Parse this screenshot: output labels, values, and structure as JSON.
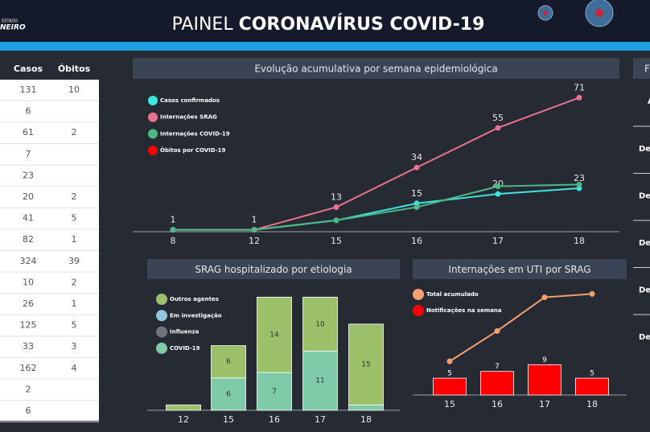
{
  "header": {
    "logo_top": "ESTADO",
    "logo_bottom": "NEIRO",
    "title_light": "PAINEL",
    "title_bold": "CORONAVÍRUS COVID-19"
  },
  "table": {
    "columns": [
      "Casos",
      "Óbitos"
    ],
    "rows": [
      [
        131,
        10
      ],
      [
        6
      ],
      [
        61,
        2
      ],
      [
        7
      ],
      [
        23
      ],
      [
        20,
        2
      ],
      [
        41,
        5
      ],
      [
        82,
        1
      ],
      [
        324,
        39
      ],
      [
        10,
        2
      ],
      [
        26,
        1
      ],
      [
        125,
        5
      ],
      [
        33,
        3
      ],
      [
        162,
        4
      ],
      [
        2
      ],
      [
        6
      ]
    ]
  },
  "side_panel": {
    "title": "F",
    "header": "A",
    "rows": [
      "De",
      "De",
      "De",
      "De",
      "De"
    ]
  },
  "chart_data": [
    {
      "type": "line",
      "title": "Evolução acumulativa por semana epidemiológica",
      "categories": [
        8,
        12,
        15,
        16,
        17,
        18
      ],
      "ylim": [
        0,
        75
      ],
      "series": [
        {
          "name": "Casos confirmados",
          "color": "#3fe3e0",
          "values": [
            1,
            1,
            6,
            15,
            20,
            23
          ],
          "value_labels": [
            null,
            null,
            null,
            "15",
            "20",
            "23"
          ]
        },
        {
          "name": "Internações SRAG",
          "color": "#e8728f",
          "values": [
            1,
            1,
            13,
            34,
            55,
            71
          ],
          "value_labels": [
            "1",
            "1",
            "13",
            "34",
            "55",
            "71"
          ]
        },
        {
          "name": "Internações COVID-19",
          "color": "#4fb884",
          "values": [
            1,
            1,
            6,
            13,
            24,
            25
          ]
        },
        {
          "name": "Óbitos por COVID-19",
          "color": "#ff0000",
          "values": [
            null,
            null,
            null,
            null,
            null,
            null
          ]
        }
      ]
    },
    {
      "type": "stacked_bar",
      "title": "SRAG hospitalizado por etiologia",
      "categories": [
        12,
        15,
        16,
        17,
        18
      ],
      "ylim": [
        0,
        21.5
      ],
      "series": [
        {
          "name": "Outros agentes",
          "color": "#9cc06a",
          "values": [
            1,
            6,
            14,
            10,
            15
          ],
          "value_labels": [
            null,
            "6",
            "14",
            "10",
            "15"
          ]
        },
        {
          "name": "Em investigação",
          "color": "#92c3e0",
          "values": [
            0,
            0,
            0,
            0,
            0
          ]
        },
        {
          "name": "Influenza",
          "color": "#6c737d",
          "values": [
            0,
            0,
            0,
            0,
            0
          ]
        },
        {
          "name": "COVID-19",
          "color": "#7fcaa9",
          "values": [
            0,
            6,
            7,
            11,
            1
          ],
          "value_labels": [
            null,
            "6",
            "7",
            "11",
            null
          ]
        }
      ]
    },
    {
      "type": "combo",
      "title": "Internações em UTI por SRAG",
      "categories": [
        15,
        16,
        17,
        18
      ],
      "ylim": [
        0,
        32
      ],
      "series": [
        {
          "name": "Total acumulado",
          "color": "#f4a070",
          "kind": "line",
          "values": [
            10,
            19,
            29,
            30
          ]
        },
        {
          "name": "Notificações na semana",
          "color": "#ff0000",
          "kind": "bar",
          "values": [
            5,
            7,
            9,
            5
          ]
        }
      ]
    }
  ]
}
